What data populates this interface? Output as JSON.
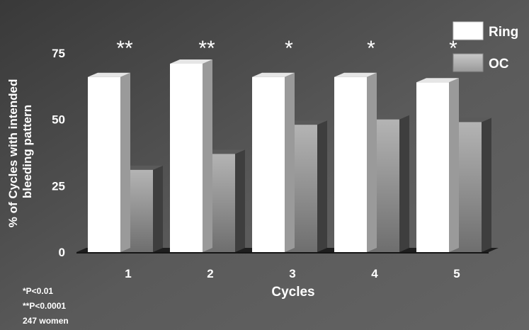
{
  "chart_data": {
    "type": "bar",
    "categories": [
      "1",
      "2",
      "3",
      "4",
      "5"
    ],
    "series": [
      {
        "name": "Ring",
        "values": [
          66,
          71,
          66,
          66,
          64
        ]
      },
      {
        "name": "OC",
        "values": [
          31,
          37,
          48,
          50,
          49
        ]
      }
    ],
    "significance": [
      "**",
      "**",
      "*",
      "*",
      "*"
    ],
    "ylabel": "% of Cycles with intended bleeding pattern",
    "ylabel_lines": [
      "% of Cycles with intended",
      "bleeding pattern"
    ],
    "xlabel": "Cycles",
    "yticks": [
      0,
      25,
      50,
      75
    ],
    "ylim": [
      0,
      75
    ],
    "legend_position": "top-right",
    "notes": [
      "*P<0.01",
      "**P<0.0001",
      "247 women"
    ],
    "colors": {
      "ring_face": "#ffffff",
      "ring_side": "#9a9a9a",
      "ring_top": "#e6e6e6",
      "oc_face_top": "#b4b4b4",
      "oc_face_bottom": "#6e6e6e",
      "oc_side": "#3e3e3e",
      "oc_top": "#5a5a5a",
      "floor": "#1e1e1e",
      "bg_dark": "#393939",
      "bg_light": "#646464"
    }
  }
}
